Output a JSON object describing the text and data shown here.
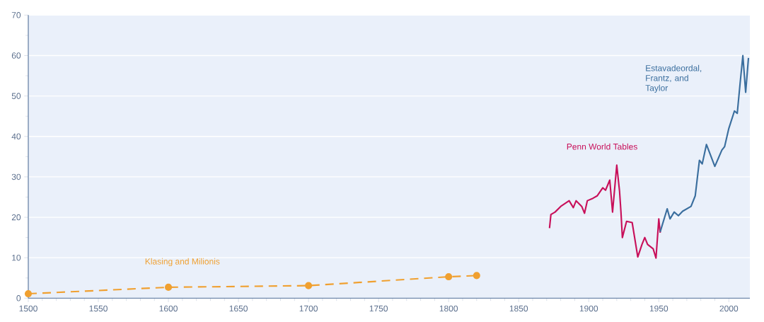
{
  "chart_data": {
    "type": "line",
    "xlim": [
      1500,
      2015
    ],
    "ylim": [
      0,
      70
    ],
    "xticks": [
      1500,
      1550,
      1600,
      1650,
      1700,
      1750,
      1800,
      1850,
      1900,
      1950,
      2000
    ],
    "yticks": [
      0,
      10,
      20,
      30,
      40,
      50,
      60,
      70
    ],
    "grid": "y",
    "series": [
      {
        "name": "Klasing and Milionis",
        "color": "#f0a030",
        "marker": "circle",
        "line_style": "dashed",
        "x": [
          1500,
          1600,
          1700,
          1800,
          1820
        ],
        "values": [
          1.1,
          2.7,
          3.1,
          5.3,
          5.6
        ]
      },
      {
        "name": "Penn World Tables",
        "color": "#c8105a",
        "marker": "none",
        "line_style": "solid",
        "x": [
          1872,
          1873,
          1876,
          1880,
          1886,
          1889,
          1891,
          1895,
          1897,
          1899,
          1903,
          1906,
          1910,
          1912,
          1915,
          1917,
          1920,
          1922,
          1923,
          1924,
          1927,
          1931,
          1935,
          1938,
          1940,
          1942,
          1946,
          1948,
          1950,
          1951
        ],
        "values": [
          17.3,
          20.7,
          21.3,
          22.7,
          24.1,
          22.4,
          24.1,
          22.7,
          21,
          24.1,
          24.7,
          25.3,
          27.3,
          26.7,
          29.2,
          21.3,
          32.9,
          26.4,
          21.3,
          15,
          19,
          18.7,
          10.2,
          13.3,
          15,
          13.3,
          12.2,
          9.9,
          19.6,
          16.2
        ]
      },
      {
        "name": "Estavadeordal, Frantz, and Taylor",
        "color": "#3a6e9e",
        "marker": "none",
        "line_style": "solid",
        "x": [
          1951,
          1956,
          1958,
          1961,
          1964,
          1967,
          1973,
          1976,
          1979,
          1981,
          1984,
          1990,
          1995,
          1997,
          2000,
          2004,
          2006,
          2008,
          2010,
          2012,
          2014
        ],
        "values": [
          16.4,
          22.1,
          19.6,
          21.3,
          20.4,
          21.5,
          22.7,
          25.3,
          34.1,
          33.2,
          38,
          32.6,
          36.6,
          37.5,
          42,
          46.3,
          45.7,
          53,
          60,
          50.9,
          59.4
        ]
      }
    ]
  }
}
